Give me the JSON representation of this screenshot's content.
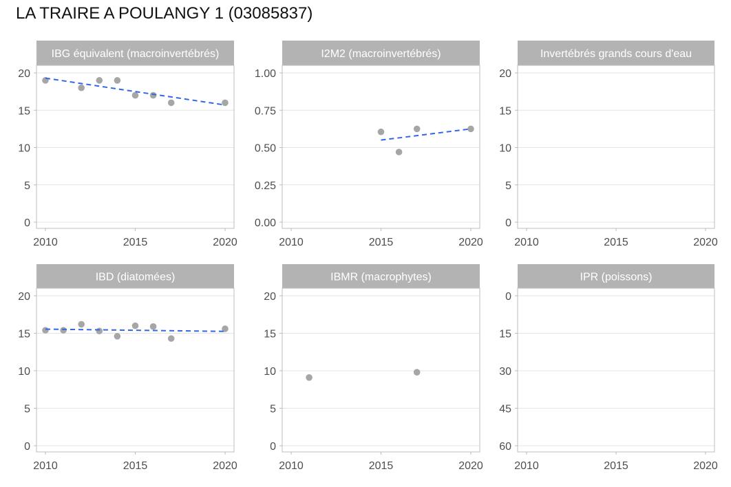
{
  "title": "LA TRAIRE A POULANGY 1 (03085837)",
  "chart_data": [
    {
      "type": "scatter",
      "title": "IBG équivalent (macroinvertébrés)",
      "xlim": [
        2010,
        2020
      ],
      "ylim": [
        0,
        20
      ],
      "x_ticks": [
        "2010",
        "2015",
        "2020"
      ],
      "y_ticks": [
        "0",
        "5",
        "10",
        "15",
        "20"
      ],
      "y_reversed": false,
      "points": {
        "x": [
          2010,
          2012,
          2013,
          2014,
          2015,
          2016,
          2017,
          2020
        ],
        "y": [
          19,
          18,
          19,
          19,
          17,
          17,
          16,
          16
        ]
      },
      "trend": {
        "x": [
          2010,
          2020
        ],
        "y": [
          19.3,
          15.7
        ]
      }
    },
    {
      "type": "scatter",
      "title": "I2M2 (macroinvertébrés)",
      "xlim": [
        2010,
        2020
      ],
      "ylim": [
        0,
        1
      ],
      "x_ticks": [
        "2010",
        "2015",
        "2020"
      ],
      "y_ticks": [
        "0.00",
        "0.25",
        "0.50",
        "0.75",
        "1.00"
      ],
      "y_reversed": false,
      "points": {
        "x": [
          2015,
          2016,
          2017,
          2020
        ],
        "y": [
          0.605,
          0.47,
          0.625,
          0.625
        ]
      },
      "trend": {
        "x": [
          2015,
          2020
        ],
        "y": [
          0.55,
          0.625
        ]
      }
    },
    {
      "type": "scatter",
      "title": "Invertébrés grands cours d'eau",
      "xlim": [
        2010,
        2020
      ],
      "ylim": [
        0,
        20
      ],
      "x_ticks": [
        "2010",
        "2015",
        "2020"
      ],
      "y_ticks": [
        "0",
        "5",
        "10",
        "15",
        "20"
      ],
      "y_reversed": false,
      "points": {
        "x": [],
        "y": []
      },
      "trend": null
    },
    {
      "type": "scatter",
      "title": "IBD (diatomées)",
      "xlim": [
        2010,
        2020
      ],
      "ylim": [
        0,
        20
      ],
      "x_ticks": [
        "2010",
        "2015",
        "2020"
      ],
      "y_ticks": [
        "0",
        "5",
        "10",
        "15",
        "20"
      ],
      "y_reversed": false,
      "points": {
        "x": [
          2010,
          2011,
          2012,
          2013,
          2014,
          2015,
          2016,
          2017,
          2020
        ],
        "y": [
          15.4,
          15.4,
          16.2,
          15.3,
          14.6,
          16.0,
          15.9,
          14.3,
          15.6
        ]
      },
      "trend": {
        "x": [
          2010,
          2020
        ],
        "y": [
          15.55,
          15.25
        ]
      }
    },
    {
      "type": "scatter",
      "title": "IBMR (macrophytes)",
      "xlim": [
        2010,
        2020
      ],
      "ylim": [
        0,
        20
      ],
      "x_ticks": [
        "2010",
        "2015",
        "2020"
      ],
      "y_ticks": [
        "0",
        "5",
        "10",
        "15",
        "20"
      ],
      "y_reversed": false,
      "points": {
        "x": [
          2011,
          2017
        ],
        "y": [
          9.1,
          9.8
        ]
      },
      "trend": null
    },
    {
      "type": "scatter",
      "title": "IPR (poissons)",
      "xlim": [
        2010,
        2020
      ],
      "ylim": [
        0,
        60
      ],
      "x_ticks": [
        "2010",
        "2015",
        "2020"
      ],
      "y_ticks": [
        "0",
        "15",
        "30",
        "45",
        "60"
      ],
      "y_reversed": true,
      "points": {
        "x": [],
        "y": []
      },
      "trend": null
    }
  ],
  "colors": {
    "strip_bg": "#b3b3b3",
    "panel_border": "#bdbdbd",
    "grid": "#e3e3e3",
    "point": "#a6a6a6",
    "trend": "#3366e6",
    "tick_text": "#4d4d4d"
  }
}
